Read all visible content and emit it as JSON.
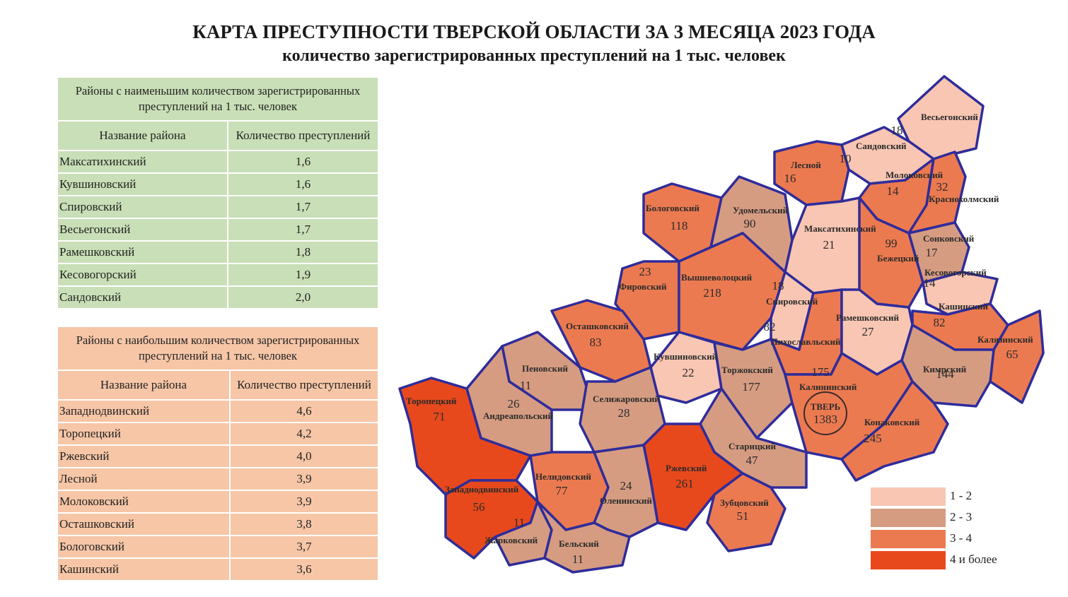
{
  "title": "КАРТА ПРЕСТУПНОСТИ ТВЕРСКОЙ ОБЛАСТИ ЗА 3 МЕСЯЦА 2023 ГОДА",
  "subtitle": "количество зарегистрированных преступлений на 1 тыс. человек",
  "low_table": {
    "caption": "Районы с наименьшим количеством зарегистрированных преступлений на 1 тыс. человек",
    "col_name": "Название района",
    "col_value": "Количество преступлений",
    "rows": [
      {
        "name": "Максатихинский",
        "value": "1,6"
      },
      {
        "name": "Кувшиновский",
        "value": "1,6"
      },
      {
        "name": "Спировский",
        "value": "1,7"
      },
      {
        "name": "Весьегонский",
        "value": "1,7"
      },
      {
        "name": "Рамешковский",
        "value": "1,8"
      },
      {
        "name": "Кесовогорский",
        "value": "1,9"
      },
      {
        "name": "Сандовский",
        "value": "2,0"
      }
    ]
  },
  "high_table": {
    "caption": "Районы с наибольшим количеством зарегистрированных преступлений на 1 тыс. человек",
    "col_name": "Название района",
    "col_value": "Количество преступлений",
    "rows": [
      {
        "name": "Западнодвинский",
        "value": "4,6"
      },
      {
        "name": "Торопецкий",
        "value": "4,2"
      },
      {
        "name": "Ржевский",
        "value": "4,0"
      },
      {
        "name": "Лесной",
        "value": "3,9"
      },
      {
        "name": "Молоковский",
        "value": "3,9"
      },
      {
        "name": "Осташковский",
        "value": "3,8"
      },
      {
        "name": "Бологовский",
        "value": "3,7"
      },
      {
        "name": "Кашинский",
        "value": "3,6"
      }
    ]
  },
  "colors": {
    "c1": "#f8c6b3",
    "c2": "#d69c82",
    "c3": "#ec7a50",
    "c4": "#e8491c",
    "border": "#2f2c9a"
  },
  "legend": [
    {
      "label": "1 - 2",
      "color": "#f8c6b3"
    },
    {
      "label": "2 - 3",
      "color": "#d69c82"
    },
    {
      "label": "3 - 4",
      "color": "#ec7a50"
    },
    {
      "label": "4 и более",
      "color": "#e8491c"
    }
  ],
  "districts": [
    {
      "name": "Весьегонский",
      "count": "18",
      "class": "1 - 2"
    },
    {
      "name": "Сандовский",
      "count": "10",
      "class": "1 - 2"
    },
    {
      "name": "Лесной",
      "count": "16",
      "class": "3 - 4"
    },
    {
      "name": "Молоковский",
      "count": "14",
      "class": "3 - 4"
    },
    {
      "name": "Краснохолмский",
      "count": "32",
      "class": "3 - 4"
    },
    {
      "name": "Бологовский",
      "count": "118",
      "class": "3 - 4"
    },
    {
      "name": "Удомельский",
      "count": "90",
      "class": "2 - 3"
    },
    {
      "name": "Максатихинский",
      "count": "21",
      "class": "1 - 2"
    },
    {
      "name": "Бежецкий",
      "count": "99",
      "class": "3 - 4"
    },
    {
      "name": "Сонковский",
      "count": "17",
      "class": "2 - 3"
    },
    {
      "name": "Фировский",
      "count": "23",
      "class": "3 - 4"
    },
    {
      "name": "Вышневолоцкий",
      "count": "218",
      "class": "3 - 4"
    },
    {
      "name": "Спировский",
      "count": "18",
      "class": "1 - 2"
    },
    {
      "name": "Кесовогорский",
      "count": "14",
      "class": "1 - 2"
    },
    {
      "name": "Кашинский",
      "count": "82",
      "class": "3 - 4"
    },
    {
      "name": "Осташковский",
      "count": "83",
      "class": "3 - 4"
    },
    {
      "name": "Лихославльский",
      "count": "82",
      "class": "3 - 4"
    },
    {
      "name": "Рамешковский",
      "count": "27",
      "class": "1 - 2"
    },
    {
      "name": "Калязинский",
      "count": "65",
      "class": "3 - 4"
    },
    {
      "name": "Пеновский",
      "count": "11",
      "class": "2 - 3"
    },
    {
      "name": "Кувшиновский",
      "count": "22",
      "class": "1 - 2"
    },
    {
      "name": "Торжокский",
      "count": "177",
      "class": "2 - 3"
    },
    {
      "name": "Калининский",
      "count": "175",
      "class": "3 - 4"
    },
    {
      "name": "ТВЕРЬ",
      "count": "1383",
      "class": "3 - 4"
    },
    {
      "name": "Кимрский",
      "count": "144",
      "class": "2 - 3"
    },
    {
      "name": "Торопецкий",
      "count": "71",
      "class": "4 и более"
    },
    {
      "name": "Андреапольский",
      "count": "26",
      "class": "2 - 3"
    },
    {
      "name": "Селижаровский",
      "count": "28",
      "class": "2 - 3"
    },
    {
      "name": "Конаковский",
      "count": "245",
      "class": "3 - 4"
    },
    {
      "name": "Старицкий",
      "count": "47",
      "class": "2 - 3"
    },
    {
      "name": "Нелидовский",
      "count": "77",
      "class": "3 - 4"
    },
    {
      "name": "Ржевский",
      "count": "261",
      "class": "4 и более"
    },
    {
      "name": "Западнодвинский",
      "count": "56",
      "class": "4 и более"
    },
    {
      "name": "Оленинский",
      "count": "24",
      "class": "2 - 3"
    },
    {
      "name": "Зубцовский",
      "count": "51",
      "class": "3 - 4"
    },
    {
      "name": "Жарковский",
      "count": "11",
      "class": "2 - 3"
    },
    {
      "name": "Бельский",
      "count": "11",
      "class": "2 - 3"
    }
  ]
}
